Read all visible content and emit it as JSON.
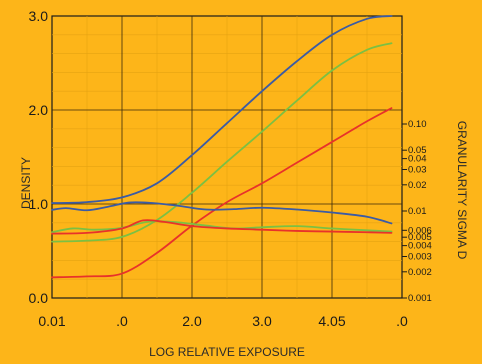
{
  "colors": {
    "background": "#FDB519",
    "axis": "#1a1a1a",
    "tick_text": "#1a1a1a",
    "title_text": "#2a2a2a"
  },
  "chart_data": {
    "type": "line",
    "xlabel": "LOG RELATIVE EXPOSURE",
    "ylabel": "DENSITY",
    "y2label": "GRANULARITY SIGMA D",
    "xlim": [
      0,
      5
    ],
    "ylim": [
      0,
      3
    ],
    "x_ticks": [
      {
        "label": "0.01",
        "value": 0
      },
      {
        "label": ".0",
        "value": 1
      },
      {
        "label": "2.0",
        "value": 2
      },
      {
        "label": "3.0",
        "value": 3
      },
      {
        "label": "4.05",
        "value": 4
      },
      {
        "label": ".0",
        "value": 5
      }
    ],
    "y_ticks": [
      {
        "label": "0.0",
        "value": 0
      },
      {
        "label": "1.0",
        "value": 1
      },
      {
        "label": "2.0",
        "value": 2
      },
      {
        "label": "3.0",
        "value": 3
      }
    ],
    "y2_scale": "log",
    "y2_ticks": [
      {
        "label": "0.10",
        "value": 0.1
      },
      {
        "label": "0.05",
        "value": 0.05
      },
      {
        "label": "0.04",
        "value": 0.04
      },
      {
        "label": "0.03",
        "value": 0.03
      },
      {
        "label": "0.02",
        "value": 0.02
      },
      {
        "label": "0.01",
        "value": 0.01
      },
      {
        "label": "0.006",
        "value": 0.006
      },
      {
        "label": "0.005",
        "value": 0.005
      },
      {
        "label": "0.004",
        "value": 0.004
      },
      {
        "label": "0.003",
        "value": 0.003
      },
      {
        "label": "0.002",
        "value": 0.002
      },
      {
        "label": "0.001",
        "value": 0.001
      }
    ],
    "grid": true,
    "legend": "none",
    "series": [
      {
        "color": "#3B5BA5",
        "curve": "density",
        "points": [
          [
            0,
            1.01
          ],
          [
            0.5,
            1.02
          ],
          [
            1,
            1.07
          ],
          [
            1.5,
            1.22
          ],
          [
            2,
            1.52
          ],
          [
            2.5,
            1.86
          ],
          [
            3,
            2.2
          ],
          [
            3.5,
            2.52
          ],
          [
            4,
            2.8
          ],
          [
            4.5,
            2.97
          ],
          [
            4.85,
            3.0
          ]
        ]
      },
      {
        "color": "#7BC043",
        "curve": "density",
        "points": [
          [
            0,
            0.6
          ],
          [
            0.5,
            0.61
          ],
          [
            1,
            0.65
          ],
          [
            1.5,
            0.83
          ],
          [
            2,
            1.12
          ],
          [
            2.5,
            1.45
          ],
          [
            3,
            1.77
          ],
          [
            3.5,
            2.1
          ],
          [
            4,
            2.42
          ],
          [
            4.5,
            2.64
          ],
          [
            4.85,
            2.71
          ]
        ]
      },
      {
        "color": "#E8322A",
        "curve": "density",
        "points": [
          [
            0,
            0.22
          ],
          [
            0.5,
            0.23
          ],
          [
            1,
            0.26
          ],
          [
            1.5,
            0.48
          ],
          [
            2,
            0.77
          ],
          [
            2.5,
            1.02
          ],
          [
            3,
            1.22
          ],
          [
            3.5,
            1.44
          ],
          [
            4,
            1.66
          ],
          [
            4.5,
            1.88
          ],
          [
            4.85,
            2.02
          ]
        ]
      },
      {
        "color": "#3B5BA5",
        "curve": "granularity",
        "points": [
          [
            0,
            0.0103
          ],
          [
            0.2,
            0.0108
          ],
          [
            0.5,
            0.0102
          ],
          [
            0.8,
            0.0112
          ],
          [
            1.1,
            0.0125
          ],
          [
            1.4,
            0.0124
          ],
          [
            1.8,
            0.0115
          ],
          [
            2.2,
            0.0104
          ],
          [
            2.6,
            0.0105
          ],
          [
            3,
            0.0109
          ],
          [
            3.5,
            0.0104
          ],
          [
            4,
            0.0096
          ],
          [
            4.5,
            0.0086
          ],
          [
            4.85,
            0.0072
          ]
        ]
      },
      {
        "color": "#7BC043",
        "curve": "granularity",
        "points": [
          [
            0,
            0.0057
          ],
          [
            0.3,
            0.0063
          ],
          [
            0.6,
            0.0061
          ],
          [
            1,
            0.0064
          ],
          [
            1.4,
            0.0076
          ],
          [
            1.8,
            0.0074
          ],
          [
            2.2,
            0.0068
          ],
          [
            2.6,
            0.0063
          ],
          [
            3,
            0.0065
          ],
          [
            3.5,
            0.0067
          ],
          [
            4,
            0.0063
          ],
          [
            4.5,
            0.006
          ],
          [
            4.85,
            0.0058
          ]
        ]
      },
      {
        "color": "#E8322A",
        "curve": "granularity",
        "points": [
          [
            0,
            0.0055
          ],
          [
            0.5,
            0.0056
          ],
          [
            1,
            0.0063
          ],
          [
            1.3,
            0.0078
          ],
          [
            1.6,
            0.0075
          ],
          [
            2,
            0.0067
          ],
          [
            2.5,
            0.0063
          ],
          [
            3,
            0.0061
          ],
          [
            3.5,
            0.0059
          ],
          [
            4,
            0.0058
          ],
          [
            4.5,
            0.0057
          ],
          [
            4.85,
            0.0056
          ]
        ]
      }
    ]
  }
}
